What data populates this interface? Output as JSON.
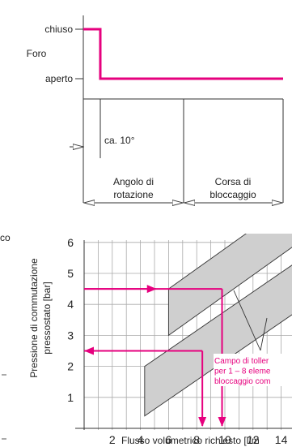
{
  "top_diagram": {
    "label_closed": "chiuso",
    "label_bore": "Foro",
    "label_open": "aperto",
    "label_angle": "ca. 10°",
    "label_rotation_l1": "Angolo di",
    "label_rotation_l2": "rotazione",
    "label_locking_l1": "Corsa di",
    "label_locking_l2": "bloccaggio"
  },
  "chart_data": {
    "type": "line",
    "ylabel_l1": "Pressione di commutazione",
    "ylabel_l2": "pressostato [bar]",
    "xlabel": "Flusso volumetrico richiesto [l/m",
    "x_ticks": [
      "2",
      "4",
      "6",
      "8",
      "10",
      "12",
      "14"
    ],
    "y_ticks": [
      "1",
      "2",
      "3",
      "4",
      "5",
      "6"
    ],
    "xlim": [
      0,
      16
    ],
    "ylim": [
      0,
      6.5
    ],
    "grid": true,
    "tolerance_note_l1": "Campo di toller",
    "tolerance_note_l2": "per 1 – 8 eleme",
    "tolerance_note_l3": "bloccaggio com",
    "left_edge_fragment": "co",
    "example_lines": [
      {
        "pressure": 4.5,
        "flow": 9.8
      },
      {
        "pressure": 2.5,
        "flow": 8.4
      }
    ],
    "colors": {
      "accent": "#e6007e",
      "band": "#cfcfcf",
      "grid": "#aaaaaa"
    }
  }
}
